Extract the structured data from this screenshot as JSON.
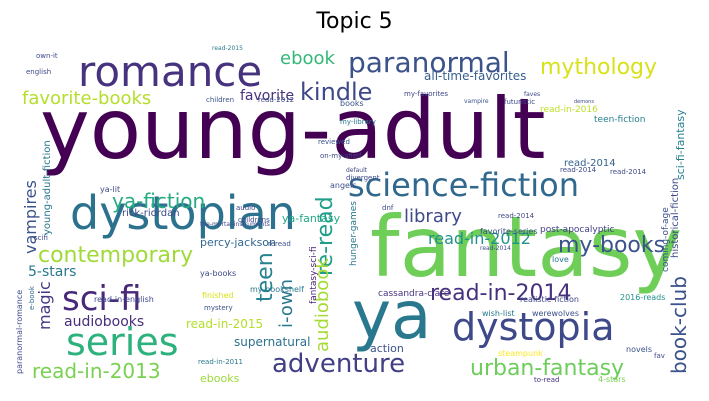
{
  "title": "Topic 5",
  "words": [
    {
      "text": "young-adult",
      "color": "#440154"
    },
    {
      "text": "fantasy",
      "color": "#6ece58"
    },
    {
      "text": "ya",
      "color": "#2a788e"
    },
    {
      "text": "dystopian",
      "color": "#2c728e"
    },
    {
      "text": "romance",
      "color": "#46327e"
    },
    {
      "text": "science-fiction",
      "color": "#31688e"
    },
    {
      "text": "dystopia",
      "color": "#3e4989"
    },
    {
      "text": "series",
      "color": "#2db27d"
    },
    {
      "text": "sci-fi",
      "color": "#482878"
    },
    {
      "text": "paranormal",
      "color": "#3b528b"
    },
    {
      "text": "mythology",
      "color": "#d8e219"
    },
    {
      "text": "read-in-2014",
      "color": "#46307e"
    },
    {
      "text": "adventure",
      "color": "#423f85"
    },
    {
      "text": "kindle",
      "color": "#3e4989"
    },
    {
      "text": "contemporary",
      "color": "#a0da39"
    },
    {
      "text": "urban-fantasy",
      "color": "#6ccd5a"
    },
    {
      "text": "read-in-2013",
      "color": "#7ad151"
    },
    {
      "text": "my-books",
      "color": "#3b528b"
    },
    {
      "text": "favorite-books",
      "color": "#b5de2b"
    },
    {
      "text": "ebook",
      "color": "#35b779"
    },
    {
      "text": "ya-fiction",
      "color": "#25ac82"
    },
    {
      "text": "teen",
      "color": "#26828e"
    },
    {
      "text": "re-read",
      "color": "#1f9e89"
    },
    {
      "text": "audiobook",
      "color": "#a5db36"
    },
    {
      "text": "i-own",
      "color": "#2a788e"
    },
    {
      "text": "book-club",
      "color": "#3b528b"
    },
    {
      "text": "library",
      "color": "#3e4a89"
    },
    {
      "text": "read-in-2012",
      "color": "#21918c"
    },
    {
      "text": "vampires",
      "color": "#3b528b"
    },
    {
      "text": "magic",
      "color": "#443983"
    },
    {
      "text": "5-stars",
      "color": "#2a788e"
    },
    {
      "text": "audiobooks",
      "color": "#472d7b"
    },
    {
      "text": "favorite",
      "color": "#46327e"
    },
    {
      "text": "read-in-2015",
      "color": "#b5de2b"
    },
    {
      "text": "supernatural",
      "color": "#2c728e"
    },
    {
      "text": "action",
      "color": "#3b528b"
    },
    {
      "text": "ebooks",
      "color": "#9dd93b"
    },
    {
      "text": "young-adult-fiction",
      "color": "#2a788e"
    },
    {
      "text": "rick-riordan",
      "color": "#3e4989"
    },
    {
      "text": "percy-jackson",
      "color": "#31688e"
    },
    {
      "text": "ya-fantasy",
      "color": "#22a884"
    },
    {
      "text": "all-time-favorites",
      "color": "#355f8d"
    },
    {
      "text": "read-in-2016",
      "color": "#bddf26"
    },
    {
      "text": "teen-fiction",
      "color": "#27808e"
    },
    {
      "text": "sci-fi-fantasy",
      "color": "#277f8e"
    },
    {
      "text": "historical-fiction",
      "color": "#3e4989"
    },
    {
      "text": "read-2014",
      "color": "#33638d"
    },
    {
      "text": "post-apocalyptic",
      "color": "#424086"
    },
    {
      "text": "coming-of-age",
      "color": "#3b528b"
    },
    {
      "text": "favorite-series",
      "color": "#3b528b"
    },
    {
      "text": "hunger-games",
      "color": "#2a788e"
    },
    {
      "text": "fantasy-sci-fi",
      "color": "#482475"
    },
    {
      "text": "cassandra-clare",
      "color": "#46337e"
    },
    {
      "text": "love",
      "color": "#2a788e"
    },
    {
      "text": "realistic-fiction",
      "color": "#3e4989"
    },
    {
      "text": "wish-list",
      "color": "#2a788e"
    },
    {
      "text": "werewolves",
      "color": "#3b528b"
    },
    {
      "text": "steampunk",
      "color": "#fde725"
    },
    {
      "text": "novels",
      "color": "#3b528b"
    },
    {
      "text": "2016-reads",
      "color": "#21918c"
    },
    {
      "text": "to-read",
      "color": "#46327e"
    },
    {
      "text": "4-stars",
      "color": "#7ad151"
    },
    {
      "text": "fav",
      "color": "#3e4989"
    },
    {
      "text": "paranormal-romance",
      "color": "#3e4989"
    },
    {
      "text": "e-book",
      "color": "#31688e"
    },
    {
      "text": "scifi",
      "color": "#3e4989"
    },
    {
      "text": "ya-lit",
      "color": "#3e4989"
    },
    {
      "text": "read-in-english",
      "color": "#3e4989"
    },
    {
      "text": "ya-books",
      "color": "#3e4989"
    },
    {
      "text": "my-bookshelf",
      "color": "#2a788e"
    },
    {
      "text": "finished",
      "color": "#d8e219"
    },
    {
      "text": "mystery",
      "color": "#3b528b"
    },
    {
      "text": "read-in-2011",
      "color": "#2a788e"
    },
    {
      "text": "own-it",
      "color": "#3e4989"
    },
    {
      "text": "english",
      "color": "#3e4989"
    },
    {
      "text": "read-2015",
      "color": "#2a788e"
    },
    {
      "text": "children",
      "color": "#3b528b"
    },
    {
      "text": "read-2012",
      "color": "#3e4989"
    },
    {
      "text": "books",
      "color": "#3b528b"
    },
    {
      "text": "my-favorites",
      "color": "#3e4989"
    },
    {
      "text": "vampire",
      "color": "#3b528b"
    },
    {
      "text": "futuristic",
      "color": "#3e4989"
    },
    {
      "text": "demons",
      "color": "#3e4989"
    },
    {
      "text": "faves",
      "color": "#3e4989"
    },
    {
      "text": "my-library",
      "color": "#2a788e"
    },
    {
      "text": "reviewed",
      "color": "#3b528b"
    },
    {
      "text": "on-my-shelf",
      "color": "#3e4989"
    },
    {
      "text": "angels",
      "color": "#3b528b"
    },
    {
      "text": "audio",
      "color": "#3e4989"
    },
    {
      "text": "childrens",
      "color": "#3e4989"
    },
    {
      "text": "divergent",
      "color": "#3e4989"
    },
    {
      "text": "default",
      "color": "#3e4989"
    },
    {
      "text": "dnf",
      "color": "#3e4989"
    },
    {
      "text": "reread",
      "color": "#3b528b"
    },
    {
      "text": "the-mortal-instruments",
      "color": "#3e4989"
    },
    {
      "text": "read-2014",
      "color": "#3e4989"
    },
    {
      "text": "read-2014",
      "color": "#3e4989"
    },
    {
      "text": "read-2014",
      "color": "#3e4989"
    },
    {
      "text": "read-2014",
      "color": "#3e4989"
    }
  ]
}
